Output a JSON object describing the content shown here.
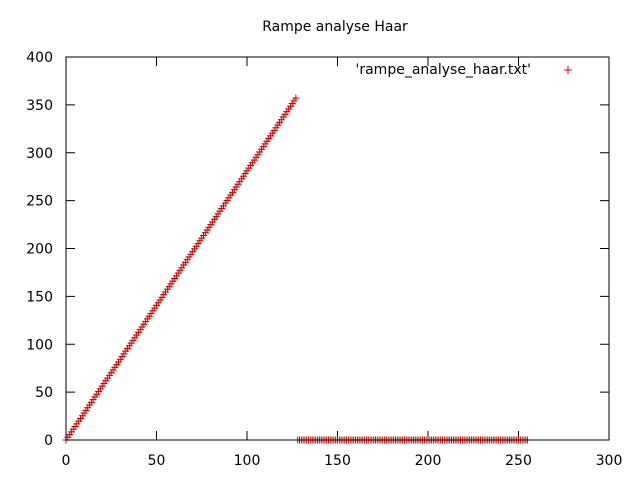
{
  "chart_data": {
    "type": "scatter",
    "title": "Rampe analyse Haar",
    "xlabel": "",
    "ylabel": "",
    "xlim": [
      0,
      300
    ],
    "ylim": [
      0,
      400
    ],
    "x_ticks": [
      0,
      50,
      100,
      150,
      200,
      250,
      300
    ],
    "y_ticks": [
      0,
      50,
      100,
      150,
      200,
      250,
      300,
      350,
      400
    ],
    "x_tick_labels": [
      "0",
      "50",
      "100",
      "150",
      "200",
      "250",
      "300"
    ],
    "y_tick_labels": [
      "0",
      "50",
      "100",
      "150",
      "200",
      "250",
      "300",
      "350",
      "400"
    ],
    "grid": false,
    "legend_position": "top-right",
    "series": [
      {
        "name": "'rampe_analyse_haar.txt'",
        "color": "#cc0000",
        "marker": "plus",
        "segments": [
          {
            "x_start": 0,
            "x_end": 127,
            "x_step": 1,
            "y_start": 0,
            "y_end": 357
          },
          {
            "x_start": 128,
            "x_end": 255,
            "x_step": 1,
            "y_start": 0,
            "y_end": 0
          }
        ]
      }
    ]
  }
}
